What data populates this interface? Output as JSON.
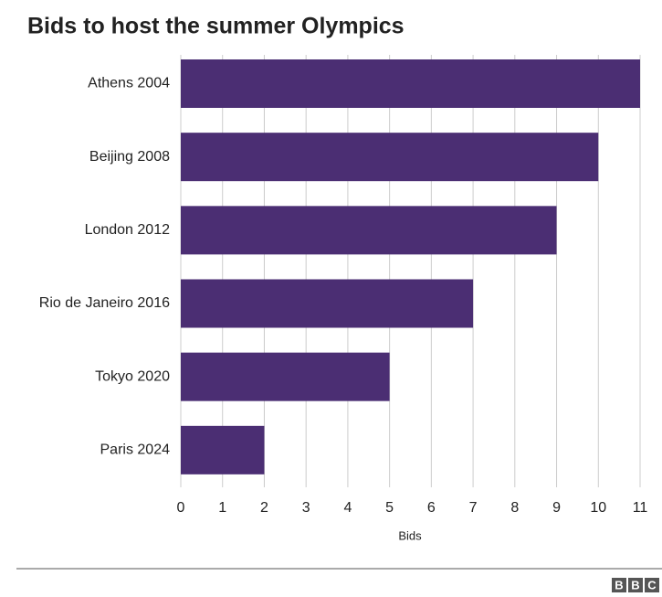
{
  "chart_data": {
    "type": "bar",
    "orientation": "horizontal",
    "title": "Bids to host the summer Olympics",
    "categories": [
      "Athens 2004",
      "Beijing 2008",
      "London 2012",
      "Rio de Janeiro 2016",
      "Tokyo 2020",
      "Paris 2024"
    ],
    "values": [
      11,
      10,
      9,
      7,
      5,
      2
    ],
    "color": "#4b2e73",
    "xlabel": "Bids",
    "xlim": [
      0,
      11
    ],
    "xticks": [
      0,
      1,
      2,
      3,
      4,
      5,
      6,
      7,
      8,
      9,
      10,
      11
    ],
    "grid": true
  },
  "footer": {
    "logo": [
      "B",
      "B",
      "C"
    ]
  }
}
